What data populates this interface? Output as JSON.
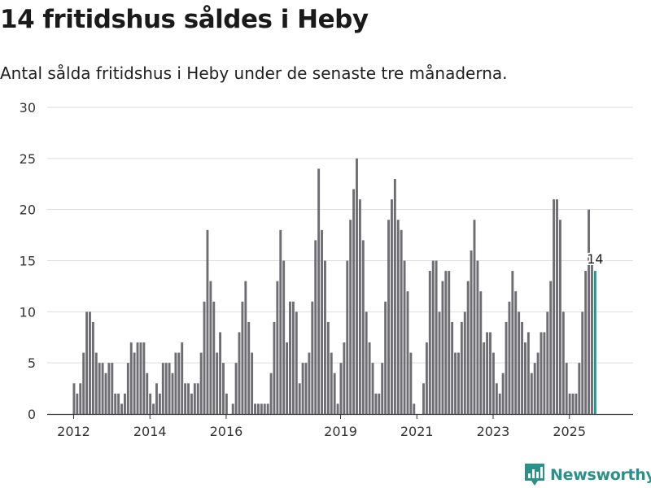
{
  "title": "14 fritidshus såldes i Heby",
  "subtitle": "Antal sålda fritidshus i Heby under de senaste tre månaderna.",
  "brand": {
    "name": "Newsworthy",
    "icon": "newsworthy-logo-icon",
    "color": "#2b8f8a"
  },
  "colors": {
    "bar": "#6e6d72",
    "highlight": "#1a9a8c",
    "grid": "#dddddd",
    "axis": "#333333",
    "text": "#333333"
  },
  "chart_data": {
    "type": "bar",
    "title": "14 fritidshus såldes i Heby",
    "subtitle": "Antal sålda fritidshus i Heby under de senaste tre månaderna.",
    "xlabel": "",
    "ylabel": "",
    "ylim": [
      0,
      30
    ],
    "yticks": [
      0,
      5,
      10,
      15,
      20,
      25,
      30
    ],
    "xticks": [
      "2012",
      "2014",
      "2016",
      "2019",
      "2021",
      "2023",
      "2025"
    ],
    "grid": true,
    "legend": "none",
    "annotation": {
      "text": "14",
      "target": "last"
    },
    "highlight_last": true,
    "segments": [
      {
        "start": "2012-01",
        "values": [
          3,
          2,
          3,
          6,
          10,
          10,
          9,
          6,
          5,
          5,
          4,
          5,
          5,
          2,
          2,
          1,
          2,
          5,
          7,
          6,
          7,
          7,
          7,
          4,
          2,
          1,
          3,
          2,
          5,
          5,
          5,
          4,
          6,
          6,
          7,
          3,
          3,
          2,
          3,
          3,
          6,
          11,
          18,
          13,
          11,
          6,
          8,
          5,
          2
        ]
      },
      {
        "start": "2016-03",
        "values": [
          1,
          5,
          8,
          11,
          13,
          9,
          6,
          1,
          1,
          1,
          1,
          1,
          4,
          9,
          13,
          18,
          15,
          7,
          11,
          11,
          10,
          3,
          5,
          5,
          6,
          11,
          17,
          24,
          18,
          15,
          9,
          6,
          4,
          1,
          5,
          7,
          15,
          19,
          22,
          25,
          21,
          17,
          10,
          7,
          5,
          2,
          2,
          5,
          11,
          19,
          21,
          23,
          19,
          18,
          15,
          12,
          6,
          1
        ]
      },
      {
        "start": "2021-03",
        "values": [
          3,
          7,
          14,
          15,
          15,
          10,
          13,
          14,
          14,
          9,
          6,
          6,
          9,
          10,
          13,
          16,
          19,
          15,
          12,
          7,
          8,
          8,
          6,
          3,
          2,
          4,
          9,
          11,
          14,
          12,
          10,
          9,
          7,
          8,
          4,
          5,
          6,
          8,
          8,
          10,
          13,
          21,
          21,
          19,
          10,
          5,
          2,
          2,
          2,
          5,
          10,
          14,
          20,
          15,
          14
        ]
      }
    ]
  }
}
